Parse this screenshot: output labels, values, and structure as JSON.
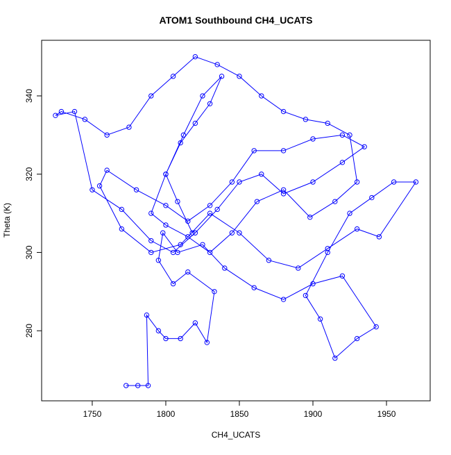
{
  "chart_data": {
    "type": "line",
    "title": "ATOM1 Southbound CH4_UCATS",
    "xlabel": "CH4_UCATS",
    "ylabel": "Theta (K)",
    "color": "#0000ff",
    "x": [
      1773,
      1781,
      1788,
      1787,
      1795,
      1800,
      1810,
      1820,
      1828,
      1833,
      1815,
      1805,
      1795,
      1798,
      1808,
      1825,
      1840,
      1860,
      1880,
      1900,
      1920,
      1943,
      1930,
      1915,
      1905,
      1895,
      1910,
      1925,
      1940,
      1955,
      1970,
      1945,
      1930,
      1910,
      1890,
      1870,
      1850,
      1830,
      1810,
      1790,
      1770,
      1755,
      1760,
      1780,
      1800,
      1815,
      1830,
      1845,
      1860,
      1880,
      1900,
      1920,
      1935,
      1920,
      1900,
      1880,
      1865,
      1850,
      1835,
      1820,
      1805,
      1790,
      1770,
      1750,
      1738,
      1725,
      1729,
      1745,
      1760,
      1775,
      1790,
      1805,
      1820,
      1835,
      1850,
      1865,
      1880,
      1895,
      1910,
      1925,
      1930,
      1915,
      1898,
      1880,
      1862,
      1845,
      1830,
      1815,
      1800,
      1790,
      1800,
      1812,
      1825,
      1838,
      1830,
      1820,
      1810,
      1800,
      1808,
      1818
    ],
    "values": [
      266,
      266,
      266,
      284,
      280,
      278,
      278,
      282,
      277,
      290,
      295,
      292,
      298,
      305,
      300,
      302,
      296,
      291,
      288,
      292,
      294,
      281,
      278,
      273,
      283,
      289,
      300,
      310,
      314,
      318,
      318,
      304,
      306,
      301,
      296,
      298,
      305,
      310,
      302,
      300,
      306,
      317,
      321,
      316,
      312,
      308,
      312,
      318,
      326,
      326,
      329,
      330,
      327,
      323,
      318,
      315,
      320,
      318,
      311,
      305,
      300,
      303,
      311,
      316,
      336,
      335,
      336,
      334,
      330,
      332,
      340,
      345,
      350,
      348,
      345,
      340,
      336,
      334,
      333,
      330,
      318,
      313,
      309,
      316,
      313,
      305,
      300,
      304,
      307,
      310,
      320,
      330,
      340,
      345,
      338,
      333,
      328,
      320,
      313,
      305
    ],
    "xlim": [
      1715.6,
      1979.7
    ],
    "ylim": [
      262.1,
      354.2
    ],
    "xticks": [
      1750,
      1800,
      1850,
      1900,
      1950
    ],
    "yticks": [
      280,
      300,
      320,
      340
    ]
  }
}
